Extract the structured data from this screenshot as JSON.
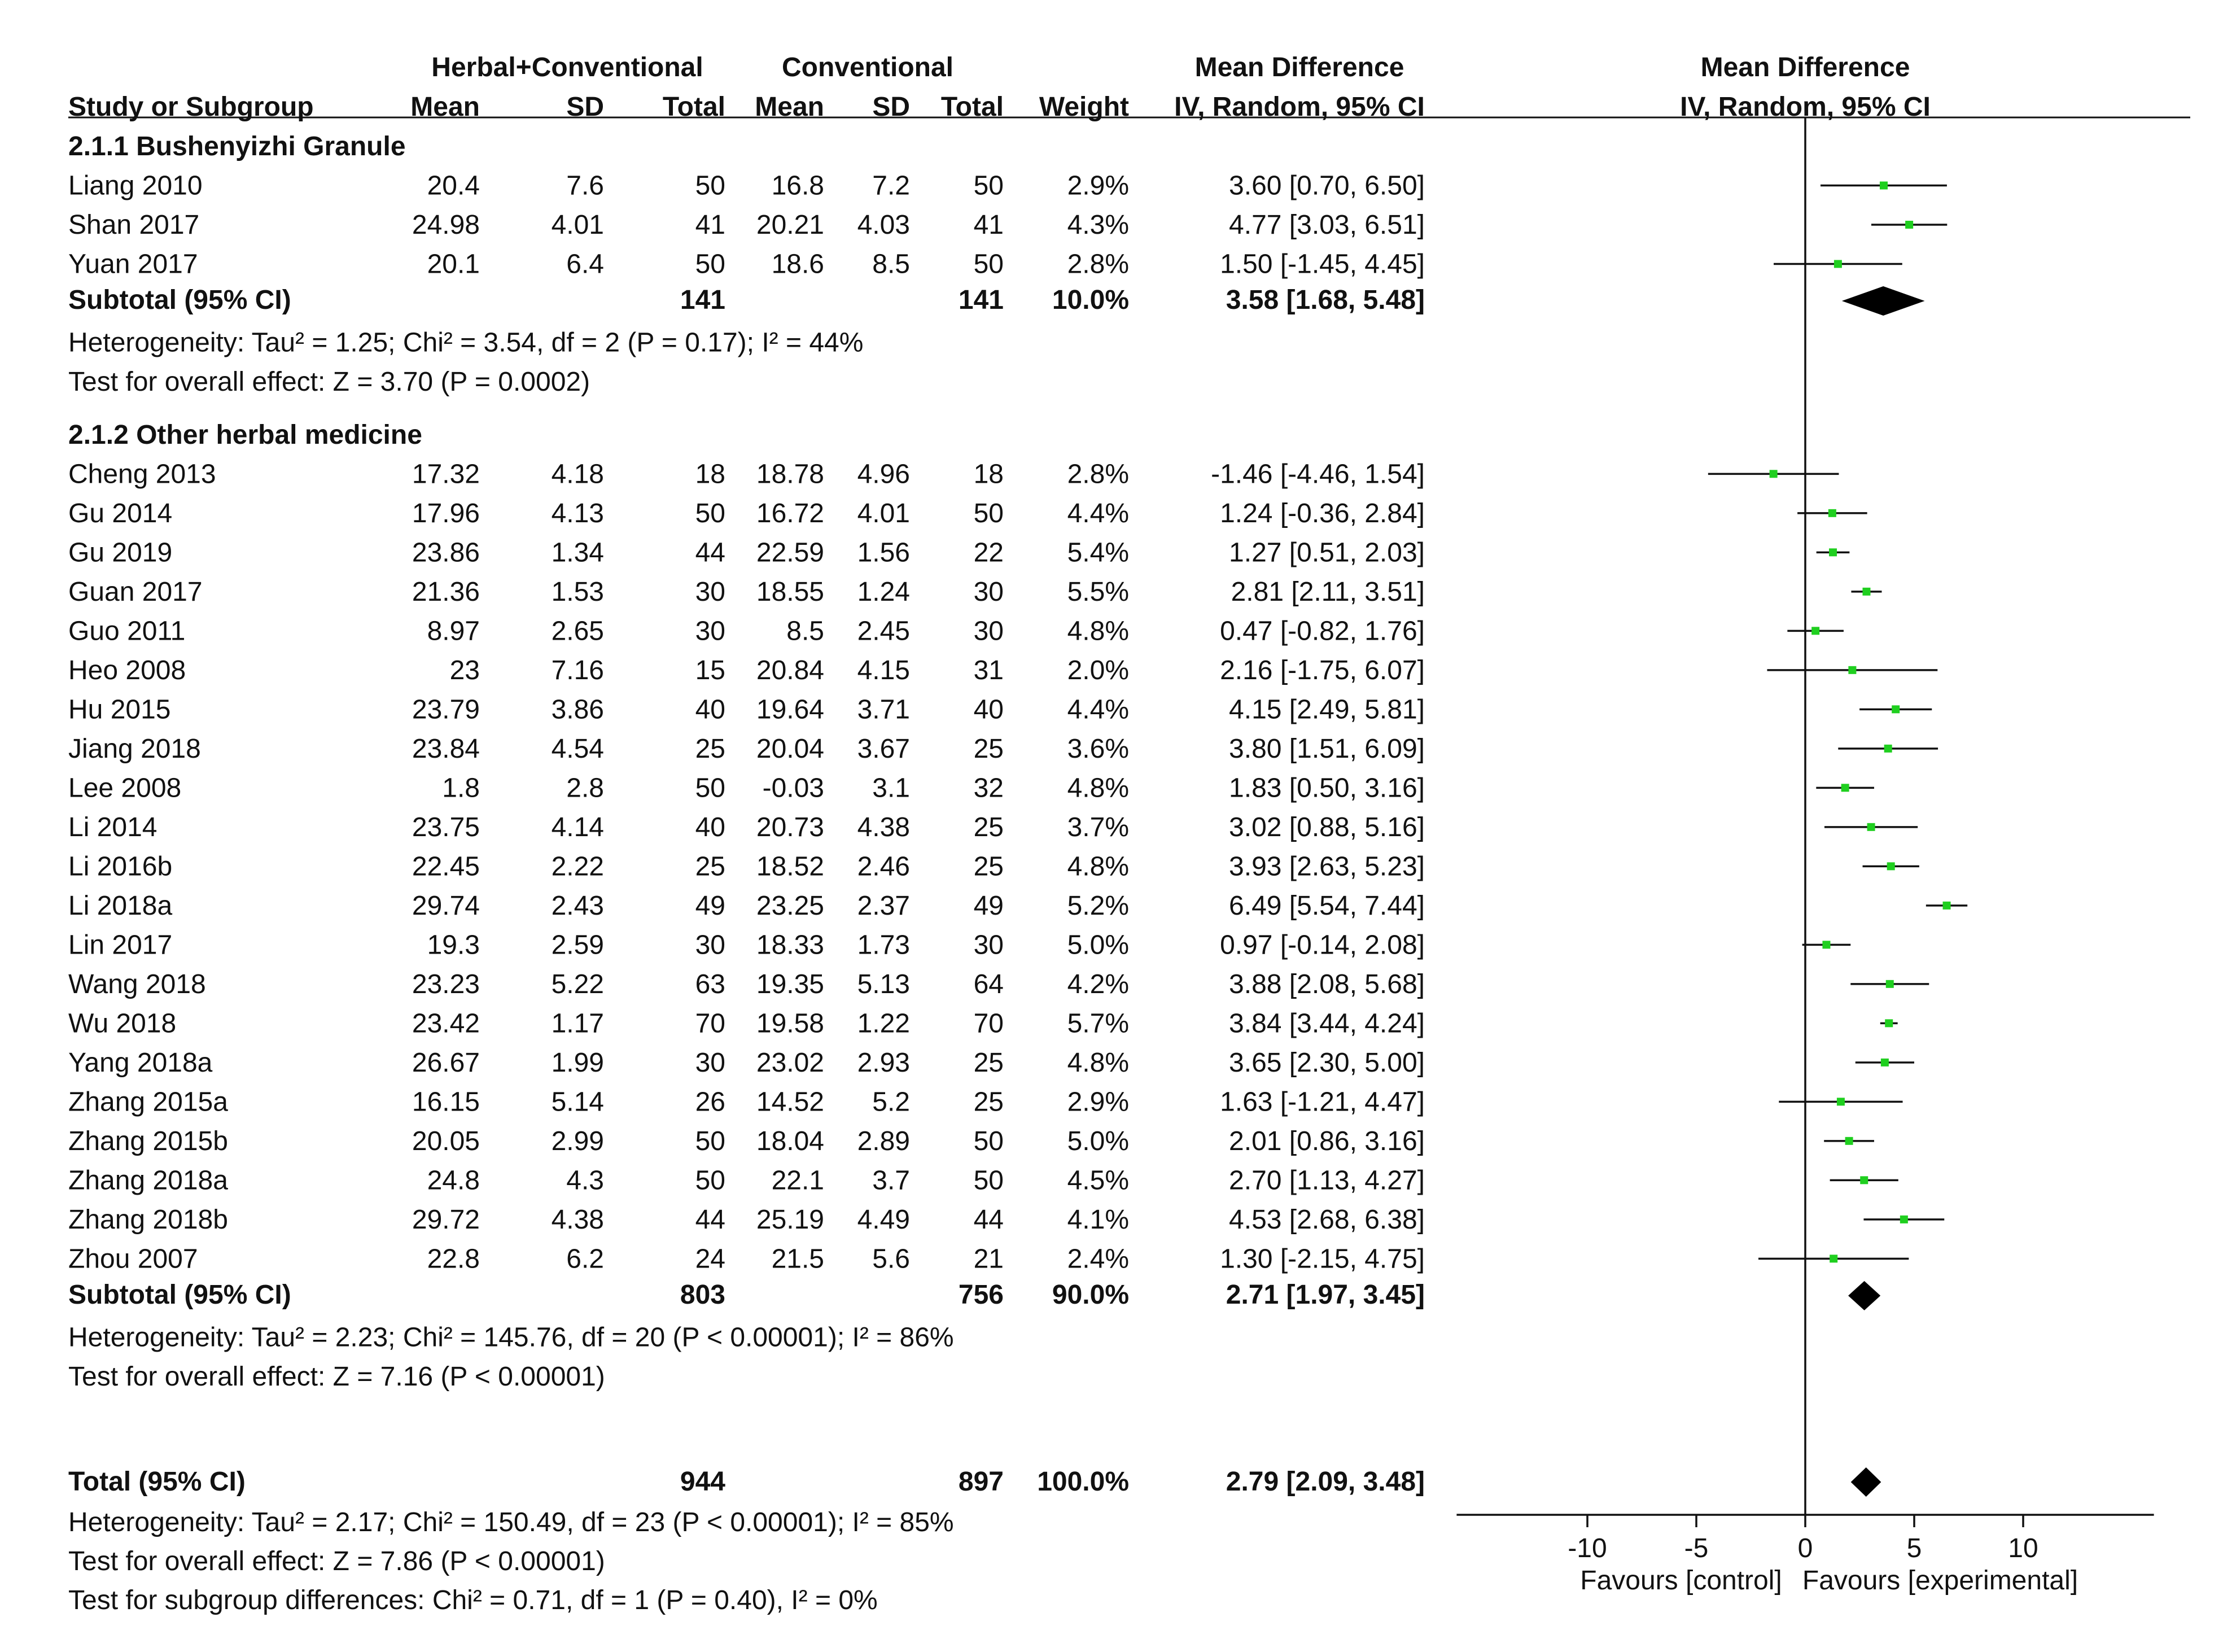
{
  "chart_data": {
    "type": "forest",
    "column_headers": {
      "group_experimental": "Herbal+Conventional",
      "group_control": "Conventional",
      "effect_title_left": "Mean Difference",
      "effect_title_right": "Mean Difference",
      "study": "Study or Subgroup",
      "mean": "Mean",
      "sd": "SD",
      "total": "Total",
      "weight": "Weight",
      "ci_left": "IV, Random, 95% CI",
      "ci_right": "IV, Random, 95% CI"
    },
    "subgroups": [
      {
        "title": "2.1.1 Bushenyizhi Granule",
        "studies": [
          {
            "name": "Liang 2010",
            "e_mean": "20.4",
            "e_sd": "7.6",
            "e_total": "50",
            "c_mean": "16.8",
            "c_sd": "7.2",
            "c_total": "50",
            "weight": "2.9%",
            "ci_text": "3.60 [0.70, 6.50]",
            "md": 3.6,
            "lo": 0.7,
            "hi": 6.5
          },
          {
            "name": "Shan 2017",
            "e_mean": "24.98",
            "e_sd": "4.01",
            "e_total": "41",
            "c_mean": "20.21",
            "c_sd": "4.03",
            "c_total": "41",
            "weight": "4.3%",
            "ci_text": "4.77 [3.03, 6.51]",
            "md": 4.77,
            "lo": 3.03,
            "hi": 6.51
          },
          {
            "name": "Yuan 2017",
            "e_mean": "20.1",
            "e_sd": "6.4",
            "e_total": "50",
            "c_mean": "18.6",
            "c_sd": "8.5",
            "c_total": "50",
            "weight": "2.8%",
            "ci_text": "1.50 [-1.45, 4.45]",
            "md": 1.5,
            "lo": -1.45,
            "hi": 4.45
          }
        ],
        "subtotal": {
          "label": "Subtotal (95% CI)",
          "e_total": "141",
          "c_total": "141",
          "weight": "10.0%",
          "ci_text": "3.58 [1.68, 5.48]",
          "md": 3.58,
          "lo": 1.68,
          "hi": 5.48
        },
        "heterogeneity": "Heterogeneity: Tau² = 1.25; Chi² = 3.54, df = 2 (P = 0.17); I² = 44%",
        "overall_effect": "Test for overall effect: Z = 3.70 (P = 0.0002)"
      },
      {
        "title": "2.1.2 Other herbal medicine",
        "studies": [
          {
            "name": "Cheng 2013",
            "e_mean": "17.32",
            "e_sd": "4.18",
            "e_total": "18",
            "c_mean": "18.78",
            "c_sd": "4.96",
            "c_total": "18",
            "weight": "2.8%",
            "ci_text": "-1.46 [-4.46, 1.54]",
            "md": -1.46,
            "lo": -4.46,
            "hi": 1.54
          },
          {
            "name": "Gu 2014",
            "e_mean": "17.96",
            "e_sd": "4.13",
            "e_total": "50",
            "c_mean": "16.72",
            "c_sd": "4.01",
            "c_total": "50",
            "weight": "4.4%",
            "ci_text": "1.24 [-0.36, 2.84]",
            "md": 1.24,
            "lo": -0.36,
            "hi": 2.84
          },
          {
            "name": "Gu 2019",
            "e_mean": "23.86",
            "e_sd": "1.34",
            "e_total": "44",
            "c_mean": "22.59",
            "c_sd": "1.56",
            "c_total": "22",
            "weight": "5.4%",
            "ci_text": "1.27 [0.51, 2.03]",
            "md": 1.27,
            "lo": 0.51,
            "hi": 2.03
          },
          {
            "name": "Guan 2017",
            "e_mean": "21.36",
            "e_sd": "1.53",
            "e_total": "30",
            "c_mean": "18.55",
            "c_sd": "1.24",
            "c_total": "30",
            "weight": "5.5%",
            "ci_text": "2.81 [2.11, 3.51]",
            "md": 2.81,
            "lo": 2.11,
            "hi": 3.51
          },
          {
            "name": "Guo 2011",
            "e_mean": "8.97",
            "e_sd": "2.65",
            "e_total": "30",
            "c_mean": "8.5",
            "c_sd": "2.45",
            "c_total": "30",
            "weight": "4.8%",
            "ci_text": "0.47 [-0.82, 1.76]",
            "md": 0.47,
            "lo": -0.82,
            "hi": 1.76
          },
          {
            "name": "Heo 2008",
            "e_mean": "23",
            "e_sd": "7.16",
            "e_total": "15",
            "c_mean": "20.84",
            "c_sd": "4.15",
            "c_total": "31",
            "weight": "2.0%",
            "ci_text": "2.16 [-1.75, 6.07]",
            "md": 2.16,
            "lo": -1.75,
            "hi": 6.07
          },
          {
            "name": "Hu 2015",
            "e_mean": "23.79",
            "e_sd": "3.86",
            "e_total": "40",
            "c_mean": "19.64",
            "c_sd": "3.71",
            "c_total": "40",
            "weight": "4.4%",
            "ci_text": "4.15 [2.49, 5.81]",
            "md": 4.15,
            "lo": 2.49,
            "hi": 5.81
          },
          {
            "name": "Jiang 2018",
            "e_mean": "23.84",
            "e_sd": "4.54",
            "e_total": "25",
            "c_mean": "20.04",
            "c_sd": "3.67",
            "c_total": "25",
            "weight": "3.6%",
            "ci_text": "3.80 [1.51, 6.09]",
            "md": 3.8,
            "lo": 1.51,
            "hi": 6.09
          },
          {
            "name": "Lee 2008",
            "e_mean": "1.8",
            "e_sd": "2.8",
            "e_total": "50",
            "c_mean": "-0.03",
            "c_sd": "3.1",
            "c_total": "32",
            "weight": "4.8%",
            "ci_text": "1.83 [0.50, 3.16]",
            "md": 1.83,
            "lo": 0.5,
            "hi": 3.16
          },
          {
            "name": "Li 2014",
            "e_mean": "23.75",
            "e_sd": "4.14",
            "e_total": "40",
            "c_mean": "20.73",
            "c_sd": "4.38",
            "c_total": "25",
            "weight": "3.7%",
            "ci_text": "3.02 [0.88, 5.16]",
            "md": 3.02,
            "lo": 0.88,
            "hi": 5.16
          },
          {
            "name": "Li 2016b",
            "e_mean": "22.45",
            "e_sd": "2.22",
            "e_total": "25",
            "c_mean": "18.52",
            "c_sd": "2.46",
            "c_total": "25",
            "weight": "4.8%",
            "ci_text": "3.93 [2.63, 5.23]",
            "md": 3.93,
            "lo": 2.63,
            "hi": 5.23
          },
          {
            "name": "Li 2018a",
            "e_mean": "29.74",
            "e_sd": "2.43",
            "e_total": "49",
            "c_mean": "23.25",
            "c_sd": "2.37",
            "c_total": "49",
            "weight": "5.2%",
            "ci_text": "6.49 [5.54, 7.44]",
            "md": 6.49,
            "lo": 5.54,
            "hi": 7.44
          },
          {
            "name": "Lin 2017",
            "e_mean": "19.3",
            "e_sd": "2.59",
            "e_total": "30",
            "c_mean": "18.33",
            "c_sd": "1.73",
            "c_total": "30",
            "weight": "5.0%",
            "ci_text": "0.97 [-0.14, 2.08]",
            "md": 0.97,
            "lo": -0.14,
            "hi": 2.08
          },
          {
            "name": "Wang 2018",
            "e_mean": "23.23",
            "e_sd": "5.22",
            "e_total": "63",
            "c_mean": "19.35",
            "c_sd": "5.13",
            "c_total": "64",
            "weight": "4.2%",
            "ci_text": "3.88 [2.08, 5.68]",
            "md": 3.88,
            "lo": 2.08,
            "hi": 5.68
          },
          {
            "name": "Wu 2018",
            "e_mean": "23.42",
            "e_sd": "1.17",
            "e_total": "70",
            "c_mean": "19.58",
            "c_sd": "1.22",
            "c_total": "70",
            "weight": "5.7%",
            "ci_text": "3.84 [3.44, 4.24]",
            "md": 3.84,
            "lo": 3.44,
            "hi": 4.24
          },
          {
            "name": "Yang 2018a",
            "e_mean": "26.67",
            "e_sd": "1.99",
            "e_total": "30",
            "c_mean": "23.02",
            "c_sd": "2.93",
            "c_total": "25",
            "weight": "4.8%",
            "ci_text": "3.65 [2.30, 5.00]",
            "md": 3.65,
            "lo": 2.3,
            "hi": 5.0
          },
          {
            "name": "Zhang 2015a",
            "e_mean": "16.15",
            "e_sd": "5.14",
            "e_total": "26",
            "c_mean": "14.52",
            "c_sd": "5.2",
            "c_total": "25",
            "weight": "2.9%",
            "ci_text": "1.63 [-1.21, 4.47]",
            "md": 1.63,
            "lo": -1.21,
            "hi": 4.47
          },
          {
            "name": "Zhang 2015b",
            "e_mean": "20.05",
            "e_sd": "2.99",
            "e_total": "50",
            "c_mean": "18.04",
            "c_sd": "2.89",
            "c_total": "50",
            "weight": "5.0%",
            "ci_text": "2.01 [0.86, 3.16]",
            "md": 2.01,
            "lo": 0.86,
            "hi": 3.16
          },
          {
            "name": "Zhang 2018a",
            "e_mean": "24.8",
            "e_sd": "4.3",
            "e_total": "50",
            "c_mean": "22.1",
            "c_sd": "3.7",
            "c_total": "50",
            "weight": "4.5%",
            "ci_text": "2.70 [1.13, 4.27]",
            "md": 2.7,
            "lo": 1.13,
            "hi": 4.27
          },
          {
            "name": "Zhang 2018b",
            "e_mean": "29.72",
            "e_sd": "4.38",
            "e_total": "44",
            "c_mean": "25.19",
            "c_sd": "4.49",
            "c_total": "44",
            "weight": "4.1%",
            "ci_text": "4.53 [2.68, 6.38]",
            "md": 4.53,
            "lo": 2.68,
            "hi": 6.38
          },
          {
            "name": "Zhou 2007",
            "e_mean": "22.8",
            "e_sd": "6.2",
            "e_total": "24",
            "c_mean": "21.5",
            "c_sd": "5.6",
            "c_total": "21",
            "weight": "2.4%",
            "ci_text": "1.30 [-2.15, 4.75]",
            "md": 1.3,
            "lo": -2.15,
            "hi": 4.75
          }
        ],
        "subtotal": {
          "label": "Subtotal (95% CI)",
          "e_total": "803",
          "c_total": "756",
          "weight": "90.0%",
          "ci_text": "2.71 [1.97, 3.45]",
          "md": 2.71,
          "lo": 1.97,
          "hi": 3.45
        },
        "heterogeneity": "Heterogeneity: Tau² = 2.23; Chi² = 145.76, df = 20 (P < 0.00001); I² = 86%",
        "overall_effect": "Test for overall effect: Z = 7.16 (P < 0.00001)"
      }
    ],
    "total": {
      "label": "Total (95% CI)",
      "e_total": "944",
      "c_total": "897",
      "weight": "100.0%",
      "ci_text": "2.79 [2.09, 3.48]",
      "md": 2.79,
      "lo": 2.09,
      "hi": 3.48
    },
    "footer_lines": [
      "Heterogeneity: Tau² = 2.17; Chi² = 150.49, df = 23 (P < 0.00001); I² = 85%",
      "Test for overall effect: Z = 7.86 (P < 0.00001)",
      "Test for subgroup differences: Chi² = 0.71, df = 1 (P = 0.40), I² = 0%"
    ],
    "x_axis": {
      "range": [
        -16,
        16
      ],
      "ticks": [
        -10,
        -5,
        0,
        5,
        10
      ],
      "tick_labels": [
        "-10",
        "-5",
        "0",
        "5",
        "10"
      ],
      "label_left": "Favours [control]",
      "label_right": "Favours [experimental]"
    },
    "colors": {
      "point": "#1fcf1f",
      "diamond": "#000000",
      "line": "#111111"
    }
  }
}
